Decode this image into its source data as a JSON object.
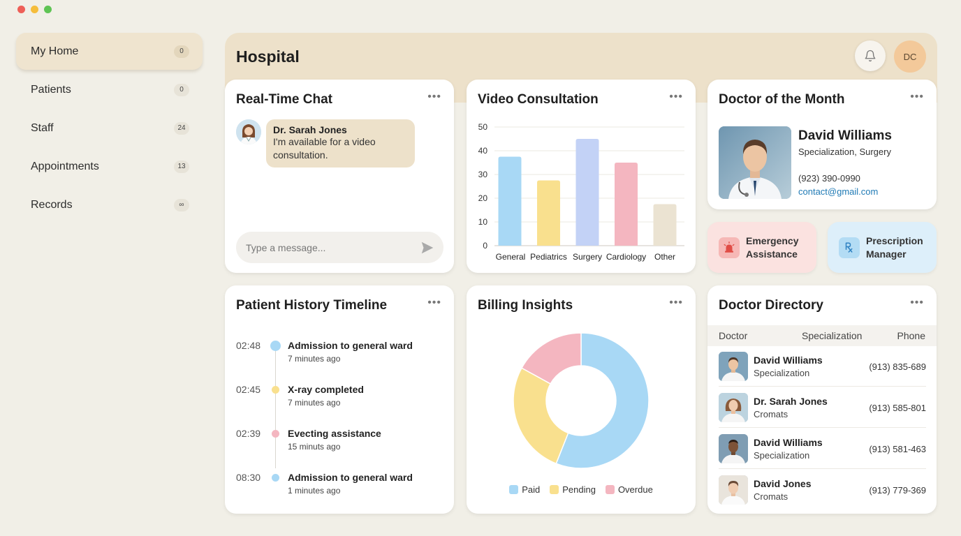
{
  "sidebar": {
    "items": [
      {
        "label": "My Home",
        "count": "0"
      },
      {
        "label": "Patients",
        "count": "0"
      },
      {
        "label": "Staff",
        "count": "24"
      },
      {
        "label": "Appointments",
        "count": "13"
      },
      {
        "label": "Records",
        "count": "∞"
      }
    ]
  },
  "header": {
    "title": "Hospital",
    "user_initials": "DC"
  },
  "chat": {
    "title": "Real-Time Chat",
    "message": {
      "sender": "Dr. Sarah Jones",
      "text": "I'm available for a video consultation."
    },
    "input_placeholder": "Type a message..."
  },
  "video": {
    "title": "Video Consultation",
    "chart_data": {
      "type": "bar",
      "categories": [
        "General",
        "Pediatrics",
        "Surgery",
        "Cardiology",
        "Other"
      ],
      "values": [
        37.5,
        27.5,
        45,
        35,
        17.5
      ],
      "colors": [
        "#a8d8f5",
        "#f9e08e",
        "#c3d2f6",
        "#f4b6c0",
        "#ebe3d2"
      ],
      "ylim": [
        0,
        50
      ],
      "yticks": [
        0,
        10,
        20,
        30,
        40,
        50
      ],
      "grid": true
    }
  },
  "doctor_of_month": {
    "title": "Doctor of the Month",
    "name": "David Williams",
    "specialization": "Specialization, Surgery",
    "phone": "(923) 390-0990",
    "email": "contact@gmail.com"
  },
  "quick_actions": {
    "emergency": {
      "label": "Emergency Assistance",
      "color": "#fbe2e0"
    },
    "prescription": {
      "label": "Prescription Manager",
      "color": "#ddeffa"
    }
  },
  "timeline": {
    "title": "Patient History Timeline",
    "entries": [
      {
        "time": "02:48",
        "title": "Admission to general ward",
        "sub": "7 minutes ago",
        "color": "#a8d8f5"
      },
      {
        "time": "02:45",
        "title": "X-ray completed",
        "sub": "7 minutes ago",
        "color": "#f9e08e"
      },
      {
        "time": "02:39",
        "title": "Evecting assistance",
        "sub": "15 minuts ago",
        "color": "#f4b6c0"
      },
      {
        "time": "08:30",
        "title": "Admission to general ward",
        "sub": "1 minutes ago",
        "color": "#a8d8f5"
      }
    ]
  },
  "billing": {
    "title": "Billing Insights",
    "chart_data": {
      "type": "pie",
      "series": [
        {
          "name": "Paid",
          "value": 56,
          "color": "#a8d8f5"
        },
        {
          "name": "Pending",
          "value": 27,
          "color": "#f9e08e"
        },
        {
          "name": "Overdue",
          "value": 17,
          "color": "#f4b6c0"
        }
      ],
      "legend": "bottom"
    }
  },
  "directory": {
    "title": "Doctor Directory",
    "columns": [
      "Doctor",
      "Specialization",
      "Phone"
    ],
    "rows": [
      {
        "name": "David Williams",
        "spec": "Specialization",
        "phone": "(913) 835-689"
      },
      {
        "name": "Dr. Sarah Jones",
        "spec": "Cromats",
        "phone": "(913) 585-801"
      },
      {
        "name": "David Williams",
        "spec": "Specialization",
        "phone": "(913) 581-463"
      },
      {
        "name": "David Jones",
        "spec": "Cromats",
        "phone": "(913) 779-369"
      }
    ]
  }
}
